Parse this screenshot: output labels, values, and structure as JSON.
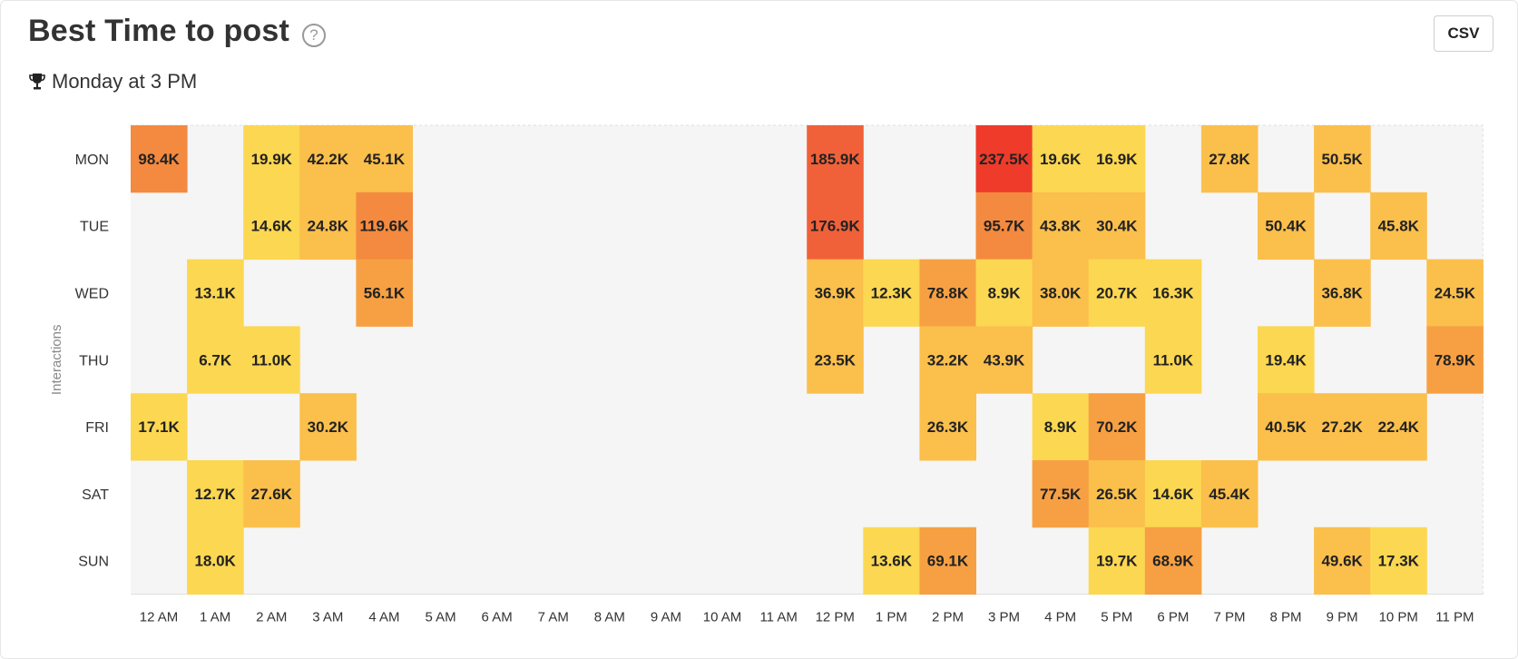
{
  "header": {
    "title": "Best Time to post",
    "help_glyph": "?",
    "csv_label": "CSV",
    "best_time": "Monday at 3 PM",
    "trophy_icon": "trophy-icon"
  },
  "chart_data": {
    "type": "heatmap",
    "ylabel": "Interactions",
    "rows": [
      "MON",
      "TUE",
      "WED",
      "THU",
      "FRI",
      "SAT",
      "SUN"
    ],
    "columns": [
      "12 AM",
      "1 AM",
      "2 AM",
      "3 AM",
      "4 AM",
      "5 AM",
      "6 AM",
      "7 AM",
      "8 AM",
      "9 AM",
      "10 AM",
      "11 AM",
      "12 PM",
      "1 PM",
      "2 PM",
      "3 PM",
      "4 PM",
      "5 PM",
      "6 PM",
      "7 PM",
      "8 PM",
      "9 PM",
      "10 PM",
      "11 PM"
    ],
    "cells": [
      {
        "row": "MON",
        "col": "12 AM",
        "label": "98.4K",
        "value": 98400
      },
      {
        "row": "MON",
        "col": "2 AM",
        "label": "19.9K",
        "value": 19900
      },
      {
        "row": "MON",
        "col": "3 AM",
        "label": "42.2K",
        "value": 42200
      },
      {
        "row": "MON",
        "col": "4 AM",
        "label": "45.1K",
        "value": 45100
      },
      {
        "row": "MON",
        "col": "12 PM",
        "label": "185.9K",
        "value": 185900
      },
      {
        "row": "MON",
        "col": "3 PM",
        "label": "237.5K",
        "value": 237500
      },
      {
        "row": "MON",
        "col": "4 PM",
        "label": "19.6K",
        "value": 19600
      },
      {
        "row": "MON",
        "col": "5 PM",
        "label": "16.9K",
        "value": 16900
      },
      {
        "row": "MON",
        "col": "7 PM",
        "label": "27.8K",
        "value": 27800
      },
      {
        "row": "MON",
        "col": "9 PM",
        "label": "50.5K",
        "value": 50500
      },
      {
        "row": "TUE",
        "col": "2 AM",
        "label": "14.6K",
        "value": 14600
      },
      {
        "row": "TUE",
        "col": "3 AM",
        "label": "24.8K",
        "value": 24800
      },
      {
        "row": "TUE",
        "col": "4 AM",
        "label": "119.6K",
        "value": 119600
      },
      {
        "row": "TUE",
        "col": "12 PM",
        "label": "176.9K",
        "value": 176900
      },
      {
        "row": "TUE",
        "col": "3 PM",
        "label": "95.7K",
        "value": 95700
      },
      {
        "row": "TUE",
        "col": "4 PM",
        "label": "43.8K",
        "value": 43800
      },
      {
        "row": "TUE",
        "col": "5 PM",
        "label": "30.4K",
        "value": 30400
      },
      {
        "row": "TUE",
        "col": "8 PM",
        "label": "50.4K",
        "value": 50400
      },
      {
        "row": "TUE",
        "col": "10 PM",
        "label": "45.8K",
        "value": 45800
      },
      {
        "row": "WED",
        "col": "1 AM",
        "label": "13.1K",
        "value": 13100
      },
      {
        "row": "WED",
        "col": "4 AM",
        "label": "56.1K",
        "value": 56100
      },
      {
        "row": "WED",
        "col": "12 PM",
        "label": "36.9K",
        "value": 36900
      },
      {
        "row": "WED",
        "col": "1 PM",
        "label": "12.3K",
        "value": 12300
      },
      {
        "row": "WED",
        "col": "2 PM",
        "label": "78.8K",
        "value": 78800
      },
      {
        "row": "WED",
        "col": "3 PM",
        "label": "8.9K",
        "value": 8900
      },
      {
        "row": "WED",
        "col": "4 PM",
        "label": "38.0K",
        "value": 38000
      },
      {
        "row": "WED",
        "col": "5 PM",
        "label": "20.7K",
        "value": 20700
      },
      {
        "row": "WED",
        "col": "6 PM",
        "label": "16.3K",
        "value": 16300
      },
      {
        "row": "WED",
        "col": "9 PM",
        "label": "36.8K",
        "value": 36800
      },
      {
        "row": "WED",
        "col": "11 PM",
        "label": "24.5K",
        "value": 24500
      },
      {
        "row": "THU",
        "col": "1 AM",
        "label": "6.7K",
        "value": 6700
      },
      {
        "row": "THU",
        "col": "2 AM",
        "label": "11.0K",
        "value": 11000
      },
      {
        "row": "THU",
        "col": "12 PM",
        "label": "23.5K",
        "value": 23500
      },
      {
        "row": "THU",
        "col": "2 PM",
        "label": "32.2K",
        "value": 32200
      },
      {
        "row": "THU",
        "col": "3 PM",
        "label": "43.9K",
        "value": 43900
      },
      {
        "row": "THU",
        "col": "6 PM",
        "label": "11.0K",
        "value": 11000
      },
      {
        "row": "THU",
        "col": "8 PM",
        "label": "19.4K",
        "value": 19400
      },
      {
        "row": "THU",
        "col": "11 PM",
        "label": "78.9K",
        "value": 78900
      },
      {
        "row": "FRI",
        "col": "12 AM",
        "label": "17.1K",
        "value": 17100
      },
      {
        "row": "FRI",
        "col": "3 AM",
        "label": "30.2K",
        "value": 30200
      },
      {
        "row": "FRI",
        "col": "2 PM",
        "label": "26.3K",
        "value": 26300
      },
      {
        "row": "FRI",
        "col": "4 PM",
        "label": "8.9K",
        "value": 8900
      },
      {
        "row": "FRI",
        "col": "5 PM",
        "label": "70.2K",
        "value": 70200
      },
      {
        "row": "FRI",
        "col": "8 PM",
        "label": "40.5K",
        "value": 40500
      },
      {
        "row": "FRI",
        "col": "9 PM",
        "label": "27.2K",
        "value": 27200
      },
      {
        "row": "FRI",
        "col": "10 PM",
        "label": "22.4K",
        "value": 22400
      },
      {
        "row": "SAT",
        "col": "1 AM",
        "label": "12.7K",
        "value": 12700
      },
      {
        "row": "SAT",
        "col": "2 AM",
        "label": "27.6K",
        "value": 27600
      },
      {
        "row": "SAT",
        "col": "4 PM",
        "label": "77.5K",
        "value": 77500
      },
      {
        "row": "SAT",
        "col": "5 PM",
        "label": "26.5K",
        "value": 26500
      },
      {
        "row": "SAT",
        "col": "6 PM",
        "label": "14.6K",
        "value": 14600
      },
      {
        "row": "SAT",
        "col": "7 PM",
        "label": "45.4K",
        "value": 45400
      },
      {
        "row": "SUN",
        "col": "1 AM",
        "label": "18.0K",
        "value": 18000
      },
      {
        "row": "SUN",
        "col": "1 PM",
        "label": "13.6K",
        "value": 13600
      },
      {
        "row": "SUN",
        "col": "2 PM",
        "label": "69.1K",
        "value": 69100
      },
      {
        "row": "SUN",
        "col": "5 PM",
        "label": "19.7K",
        "value": 19700
      },
      {
        "row": "SUN",
        "col": "6 PM",
        "label": "68.9K",
        "value": 68900
      },
      {
        "row": "SUN",
        "col": "9 PM",
        "label": "49.6K",
        "value": 49600
      },
      {
        "row": "SUN",
        "col": "10 PM",
        "label": "17.3K",
        "value": 17300
      }
    ],
    "empty_color": "#f5f5f5",
    "color_scale": [
      "#fcd751",
      "#fbbf4c",
      "#f7a043",
      "#f38a3f",
      "#f0613a",
      "#ee3b2a"
    ]
  }
}
